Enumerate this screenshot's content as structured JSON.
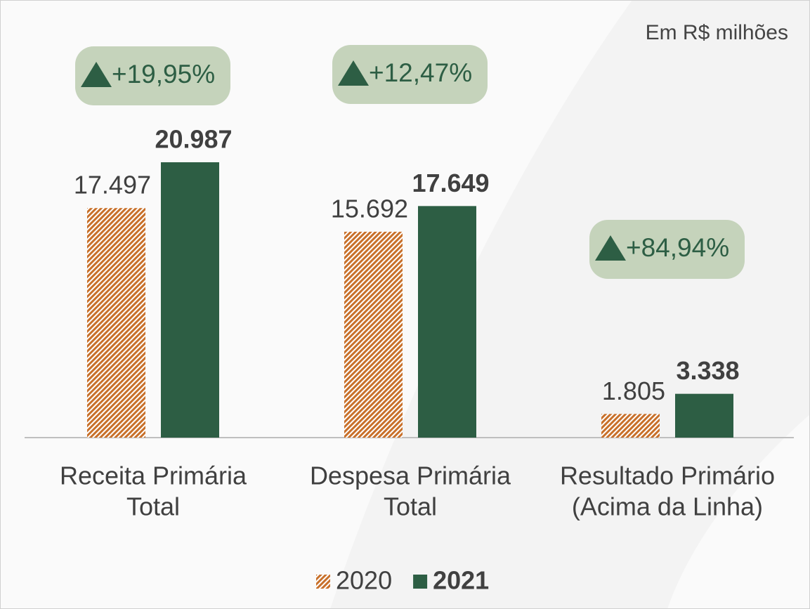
{
  "chart_data": {
    "type": "bar",
    "subtitle": "Em R$ milhões",
    "categories": [
      [
        "Receita Primária",
        "Total"
      ],
      [
        "Despesa Primária",
        "Total"
      ],
      [
        "Resultado Primário",
        "(Acima da Linha)"
      ]
    ],
    "series": [
      {
        "name": "2020",
        "color": "#c8702a",
        "hatch": true,
        "bold": false,
        "values": [
          17497,
          15692,
          1805
        ],
        "value_labels": [
          "17.497",
          "15.692",
          "1.805"
        ]
      },
      {
        "name": "2021",
        "color": "#2d5e44",
        "hatch": false,
        "bold": true,
        "values": [
          20987,
          17649,
          3338
        ],
        "value_labels": [
          "20.987",
          "17.649",
          "3.338"
        ]
      }
    ],
    "annotations": [
      "+19,95%",
      "+12,47%",
      "+84,94%"
    ],
    "annotation_color": "#c5d3bb"
  }
}
